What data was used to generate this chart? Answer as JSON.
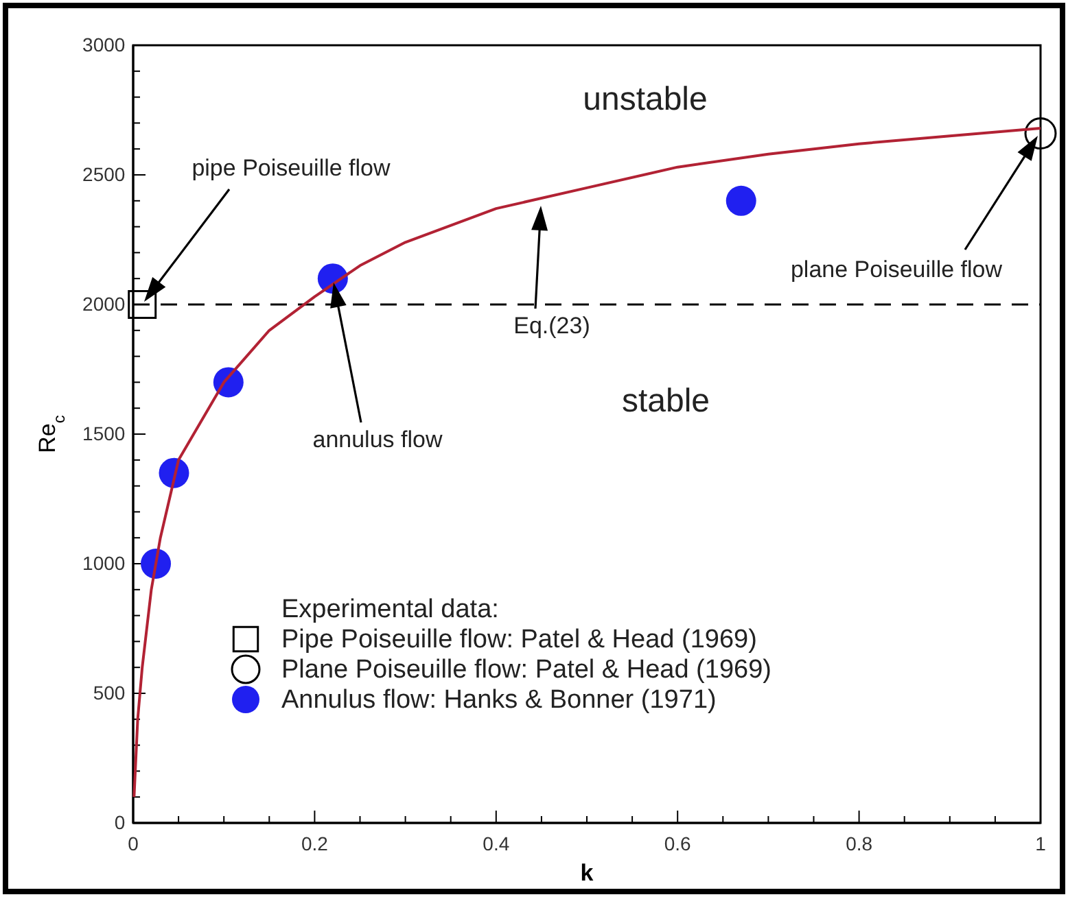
{
  "chart_data": {
    "type": "scatter",
    "xlabel": "k",
    "ylabel": "Re$_{c}$",
    "legend_title": "Experimental data:",
    "legend": "bottom left",
    "xlim": [
      0,
      1
    ],
    "ylim": [
      0,
      3000
    ],
    "xticks": [
      0,
      {
        "value": 0.05,
        "label": null
      },
      {
        "value": 0.1,
        "label": null
      },
      {
        "value": 0.15,
        "label": null
      },
      0.2,
      {
        "value": 0.25,
        "label": null
      },
      {
        "value": 0.3,
        "label": null
      },
      {
        "value": 0.35,
        "label": null
      },
      0.4,
      {
        "value": 0.45,
        "label": null
      },
      {
        "value": 0.5,
        "label": null
      },
      {
        "value": 0.55,
        "label": null
      },
      0.6,
      {
        "value": 0.65,
        "label": null
      },
      {
        "value": 0.7,
        "label": null
      },
      {
        "value": 0.75,
        "label": null
      },
      0.8,
      {
        "value": 0.85,
        "label": null
      },
      {
        "value": 0.9,
        "label": null
      },
      {
        "value": 0.95,
        "label": null
      },
      1
    ],
    "yticks": [
      0,
      {
        "value": 100,
        "label": null
      },
      {
        "value": 200,
        "label": null
      },
      {
        "value": 300,
        "label": null
      },
      {
        "value": 400,
        "label": null
      },
      500,
      {
        "value": 600,
        "label": null
      },
      {
        "value": 700,
        "label": null
      },
      {
        "value": 800,
        "label": null
      },
      {
        "value": 900,
        "label": null
      },
      1000,
      {
        "value": 1100,
        "label": null
      },
      {
        "value": 1200,
        "label": null
      },
      {
        "value": 1300,
        "label": null
      },
      {
        "value": 1400,
        "label": null
      },
      1500,
      {
        "value": 1600,
        "label": null
      },
      {
        "value": 1700,
        "label": null
      },
      {
        "value": 1800,
        "label": null
      },
      {
        "value": 1900,
        "label": null
      },
      2000,
      {
        "value": 2100,
        "label": null
      },
      {
        "value": 2200,
        "label": null
      },
      {
        "value": 2300,
        "label": null
      },
      {
        "value": 2400,
        "label": null
      },
      2500,
      {
        "value": 2600,
        "label": null
      },
      {
        "value": 2700,
        "label": null
      },
      {
        "value": 2800,
        "label": null
      },
      {
        "value": 2900,
        "label": null
      },
      3000
    ],
    "ref_lines": [
      {
        "axis": "y",
        "value": 2000,
        "color": "#000000",
        "line_style": "dashed"
      }
    ],
    "series": [
      {
        "type": "line",
        "color": "#b22234",
        "marker": "none",
        "x": [
          0.001,
          0.005,
          0.01,
          0.02,
          0.03,
          0.05,
          0.1,
          0.15,
          0.2,
          0.25,
          0.3,
          0.4,
          0.5,
          0.6,
          0.7,
          0.8,
          0.9,
          1
        ],
        "values": [
          100,
          400,
          600,
          900,
          1100,
          1400,
          1700,
          1900,
          2030,
          2150,
          2240,
          2370,
          2450,
          2530,
          2580,
          2620,
          2650,
          2680
        ]
      },
      {
        "name": "Pipe Poiseuille flow: Patel & Head (1969)",
        "color": "#000000",
        "marker": "square",
        "x": [
          0.01
        ],
        "values": [
          2000
        ]
      },
      {
        "name": "Plane Poiseuille flow: Patel & Head (1969)",
        "color": "#000000",
        "marker": "circle",
        "x": [
          1
        ],
        "values": [
          2660
        ]
      },
      {
        "name": "Annulus flow: Hanks & Bonner (1971)",
        "color": "#2020f0",
        "marker": "circle",
        "x": [
          0.025,
          0.045,
          0.105,
          0.22,
          0.67
        ],
        "values": [
          1000,
          1350,
          1700,
          2100,
          2400
        ]
      }
    ],
    "annotations": [
      "unstable",
      "stable",
      "pipe Poiseuille flow",
      "annulus flow",
      "Eq.(23)",
      "plane Poiseuille flow"
    ]
  }
}
